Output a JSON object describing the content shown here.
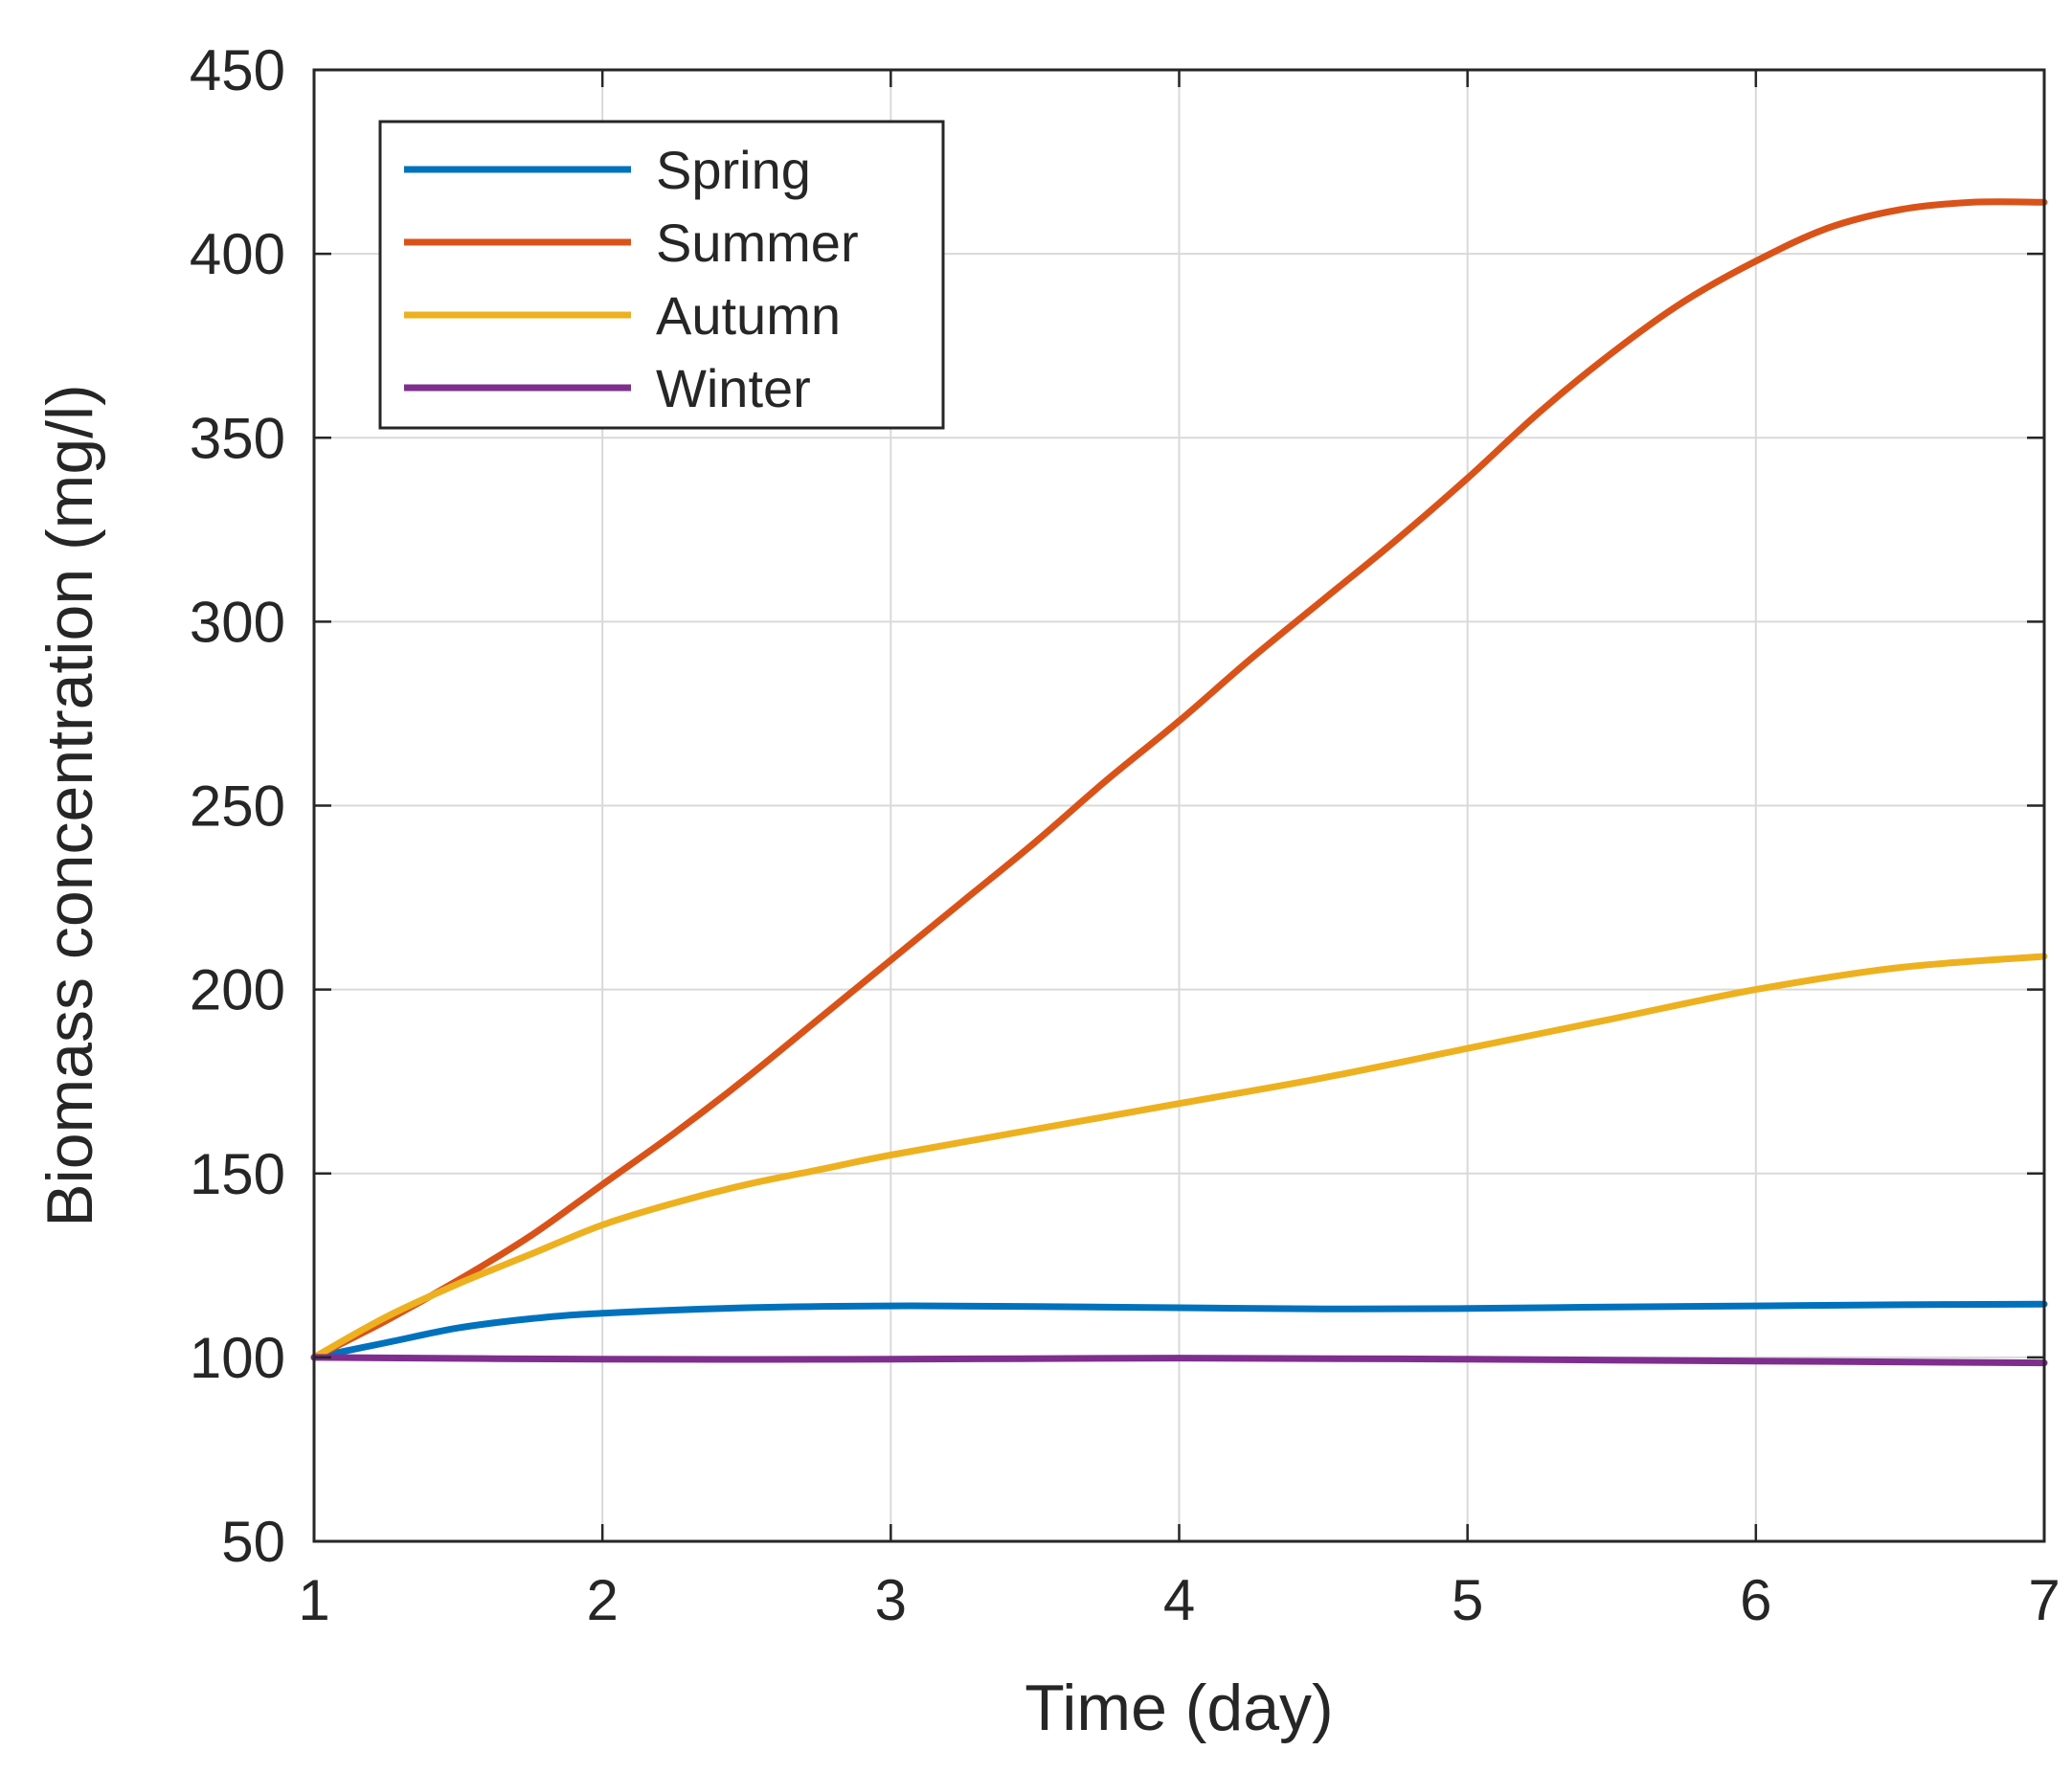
{
  "chart_data": {
    "type": "line",
    "title": "",
    "xlabel": "Time (day)",
    "ylabel": "Biomass concentration (mg/l)",
    "xlim": [
      1,
      7
    ],
    "ylim": [
      50,
      450
    ],
    "xticks": [
      1,
      2,
      3,
      4,
      5,
      6,
      7
    ],
    "yticks": [
      50,
      100,
      150,
      200,
      250,
      300,
      350,
      400,
      450
    ],
    "grid": true,
    "legend_position": "top-left",
    "series": [
      {
        "name": "Spring",
        "color": "#0072BD",
        "x": [
          1,
          1.25,
          1.5,
          1.75,
          2,
          2.5,
          3,
          3.5,
          4,
          4.5,
          5,
          5.5,
          6,
          6.5,
          7
        ],
        "y": [
          100,
          104,
          108,
          110.5,
          112,
          113.5,
          114,
          113.8,
          113.5,
          113.2,
          113.3,
          113.7,
          114,
          114.3,
          114.5
        ]
      },
      {
        "name": "Summer",
        "color": "#D95319",
        "x": [
          1,
          1.25,
          1.5,
          1.75,
          2,
          2.25,
          2.5,
          2.75,
          3,
          3.25,
          3.5,
          3.75,
          4,
          4.25,
          4.5,
          4.75,
          5,
          5.25,
          5.5,
          5.75,
          6,
          6.25,
          6.5,
          6.75,
          7
        ],
        "y": [
          100,
          110,
          121,
          133,
          147,
          161,
          176,
          192,
          208,
          224,
          240,
          257,
          273,
          290,
          306,
          322,
          339,
          357,
          373,
          387,
          398,
          407,
          412,
          414,
          414
        ]
      },
      {
        "name": "Autumn",
        "color": "#EDB120",
        "x": [
          1,
          1.25,
          1.5,
          1.75,
          2,
          2.25,
          2.5,
          2.75,
          3,
          3.5,
          4,
          4.5,
          5,
          5.5,
          6,
          6.5,
          7
        ],
        "y": [
          100,
          111,
          120,
          128,
          136,
          142,
          147,
          151,
          155,
          162,
          169,
          176,
          184,
          192,
          200,
          206,
          209
        ]
      },
      {
        "name": "Winter",
        "color": "#7E2F8E",
        "x": [
          1,
          2,
          3,
          4,
          5,
          6,
          7
        ],
        "y": [
          100,
          99.5,
          99.5,
          99.8,
          99.5,
          99,
          98.5
        ]
      }
    ]
  }
}
